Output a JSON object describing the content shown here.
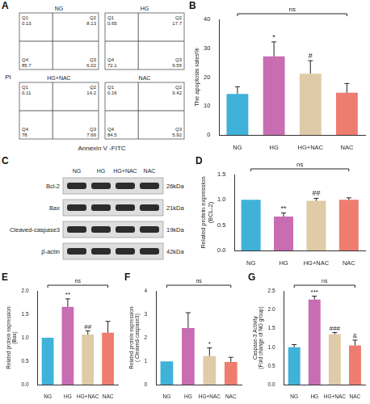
{
  "chart_data": [
    {
      "panel": "A",
      "type": "flow_cytometry",
      "x_label": "Annexin V -FITC",
      "y_label": "PI",
      "plots": [
        {
          "name": "NG",
          "quadrants": [
            {
              "name": "Q1",
              "value": 0.13
            },
            {
              "name": "Q2",
              "value": 8.13
            },
            {
              "name": "Q3",
              "value": 6.02
            },
            {
              "name": "Q4",
              "value": 85.7
            }
          ]
        },
        {
          "name": "HG",
          "quadrants": [
            {
              "name": "Q1",
              "value": 0.65
            },
            {
              "name": "Q2",
              "value": 17.7
            },
            {
              "name": "Q3",
              "value": 9.55
            },
            {
              "name": "Q4",
              "value": 72.1
            }
          ]
        },
        {
          "name": "HG+NAC",
          "quadrants": [
            {
              "name": "Q1",
              "value": 0.11
            },
            {
              "name": "Q2",
              "value": 14.2
            },
            {
              "name": "Q3",
              "value": 7.66
            },
            {
              "name": "Q4",
              "value": 78.0
            }
          ]
        },
        {
          "name": "NAC",
          "quadrants": [
            {
              "name": "Q1",
              "value": 0.16
            },
            {
              "name": "Q2",
              "value": 9.42
            },
            {
              "name": "Q3",
              "value": 5.92
            },
            {
              "name": "Q4",
              "value": 84.5
            }
          ]
        }
      ]
    },
    {
      "panel": "B",
      "type": "bar",
      "categories": [
        "NG",
        "HG",
        "HG+NAC",
        "NAC"
      ],
      "colors": [
        "#3fb2d9",
        "#c96db3",
        "#e0cba8",
        "#ee7d6f"
      ],
      "values": [
        14.2,
        27.2,
        21.2,
        14.6
      ],
      "errors": [
        2.5,
        5.0,
        4.5,
        3.2
      ],
      "y_label": "The apoptosis rates%",
      "ylim": [
        0,
        40
      ],
      "yticks": [
        0,
        10,
        20,
        30,
        40
      ],
      "grid": false,
      "annotations": [
        {
          "text": "ns",
          "span": [
            "NG",
            "NAC"
          ]
        },
        {
          "text": "*",
          "category": "HG"
        },
        {
          "text": "#",
          "category": "HG+NAC"
        }
      ]
    },
    {
      "panel": "C",
      "type": "western_blot",
      "lanes": [
        "NG",
        "HG",
        "HG+NAC",
        "NAC"
      ],
      "bands": [
        {
          "name": "Bcl-2",
          "size": "26kDa"
        },
        {
          "name": "Bax",
          "size": "21kDa"
        },
        {
          "name": "Cleaved-caspase3",
          "size": "19kDa"
        },
        {
          "name": "β-actin",
          "size": "42kDa"
        }
      ]
    },
    {
      "panel": "D",
      "type": "bar",
      "categories": [
        "NG",
        "HG",
        "HG+NAC",
        "NAC"
      ],
      "colors": [
        "#3fb2d9",
        "#c96db3",
        "#e0cba8",
        "#ee7d6f"
      ],
      "values": [
        1.0,
        0.67,
        0.98,
        1.0
      ],
      "errors": [
        0,
        0.07,
        0.05,
        0.04
      ],
      "y_label": [
        "Related protein expression",
        "(BCL-2)"
      ],
      "ylim": [
        0,
        1.5
      ],
      "yticks": [
        {
          "value": 0,
          "label": "0.0"
        },
        0.5,
        {
          "value": 1,
          "label": "1.0"
        },
        1.5
      ],
      "grid": false,
      "annotations": [
        {
          "text": "ns",
          "span": [
            "NG",
            "NAC"
          ]
        },
        {
          "text": "**",
          "category": "HG"
        },
        {
          "text": "##",
          "category": "HG+NAC"
        }
      ]
    },
    {
      "panel": "E",
      "type": "bar",
      "categories": [
        "NG",
        "HG",
        "HG+NAC",
        "NAC"
      ],
      "colors": [
        "#3fb2d9",
        "#c96db3",
        "#e0cba8",
        "#ee7d6f"
      ],
      "values": [
        1.0,
        1.66,
        1.07,
        1.11
      ],
      "errors": [
        0,
        0.17,
        0.08,
        0.24
      ],
      "y_label": [
        "Related protein expression",
        "(Bax)"
      ],
      "ylim": [
        0,
        2
      ],
      "yticks": [
        {
          "value": 0,
          "label": "0.0"
        },
        0.5,
        {
          "value": 1,
          "label": "1.0"
        },
        1.5,
        {
          "value": 2,
          "label": "2.0"
        }
      ],
      "grid": false,
      "annotations": [
        {
          "text": "ns",
          "span": [
            "NG",
            "NAC"
          ]
        },
        {
          "text": "**",
          "category": "HG"
        },
        {
          "text": "##",
          "category": "HG+NAC"
        }
      ]
    },
    {
      "panel": "F",
      "type": "bar",
      "categories": [
        "NG",
        "HG",
        "HG+NAC",
        "NAC"
      ],
      "colors": [
        "#3fb2d9",
        "#c96db3",
        "#e0cba8",
        "#ee7d6f"
      ],
      "values": [
        1.0,
        2.42,
        1.22,
        0.97
      ],
      "errors": [
        0,
        0.65,
        0.35,
        0.2
      ],
      "y_label": [
        "Related protein expression",
        "( Cleaved-caspase3)"
      ],
      "ylim": [
        0,
        4
      ],
      "yticks": [
        0,
        1,
        2,
        3,
        4
      ],
      "grid": false,
      "annotations": [
        {
          "text": "ns",
          "span": [
            "NG",
            "NAC"
          ]
        },
        {
          "text": "*",
          "category": "HG+NAC"
        }
      ]
    },
    {
      "panel": "G",
      "type": "bar",
      "categories": [
        "NG",
        "HG",
        "HG+NAC",
        "NAC"
      ],
      "colors": [
        "#3fb2d9",
        "#c96db3",
        "#e0cba8",
        "#ee7d6f"
      ],
      "values": [
        1.0,
        2.27,
        1.35,
        1.05
      ],
      "errors": [
        0.07,
        0.09,
        0.04,
        0.14
      ],
      "y_label": [
        "Caspase-3 Activity",
        "(Fold change of NG group)"
      ],
      "ylim": [
        0,
        2.5
      ],
      "yticks": [
        {
          "value": 0,
          "label": "0.0"
        },
        0.5,
        {
          "value": 1,
          "label": "1.0"
        },
        1.5,
        {
          "value": 2,
          "label": "2.0"
        },
        2.5
      ],
      "grid": false,
      "annotations": [
        {
          "text": "ns",
          "span": [
            "NG",
            "NAC"
          ]
        },
        {
          "text": "***",
          "category": "HG"
        },
        {
          "text": "###",
          "category": "HG+NAC"
        },
        {
          "text": "&",
          "category": "NAC"
        }
      ]
    }
  ]
}
